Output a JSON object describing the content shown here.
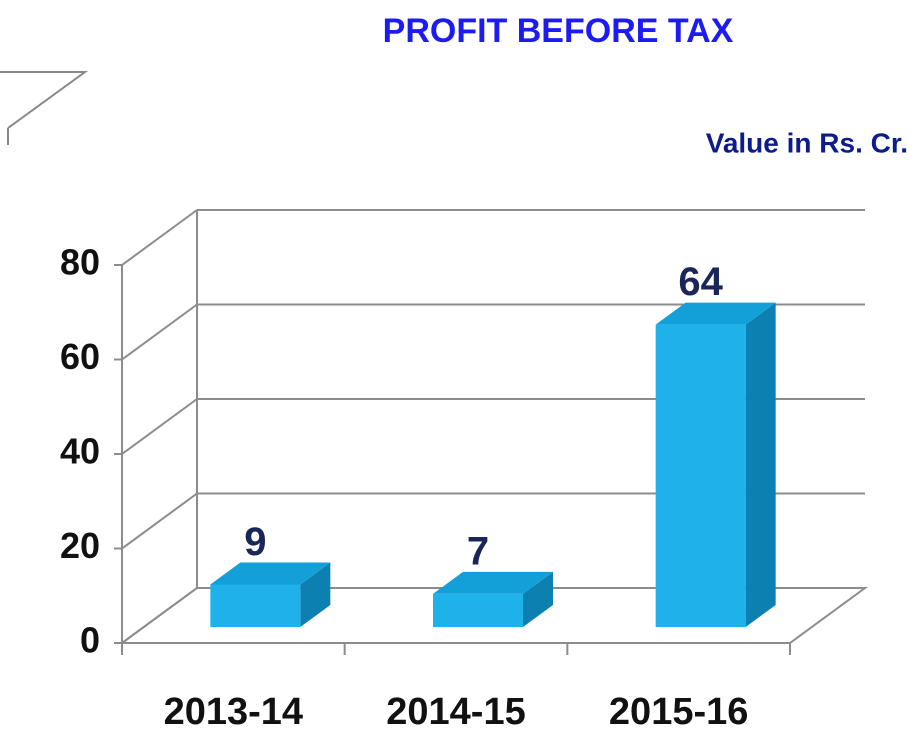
{
  "chart_data": {
    "type": "bar3d",
    "title": "PROFIT BEFORE TAX",
    "subtitle": "Value in Rs. Cr.",
    "categories": [
      "2013-14",
      "2014-15",
      "2015-16"
    ],
    "values": [
      9,
      7,
      64
    ],
    "color": "#1eb1ea",
    "ylim": [
      0,
      80
    ],
    "yticks": [
      0,
      20,
      40,
      60,
      80
    ],
    "grid": true
  }
}
